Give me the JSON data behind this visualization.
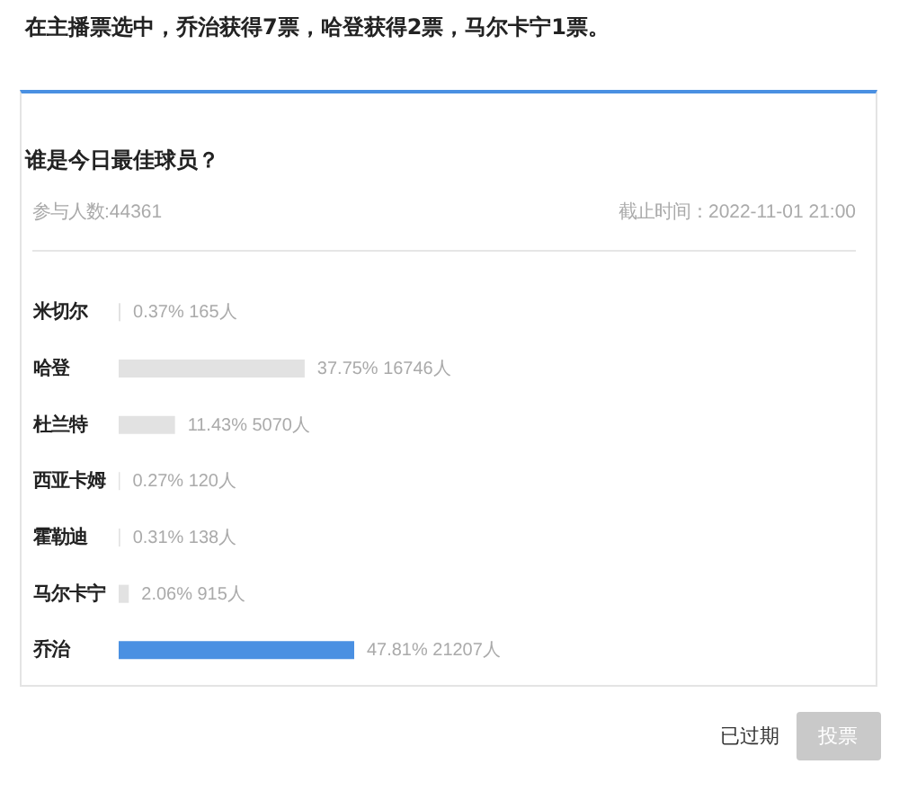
{
  "chart_data": {
    "type": "bar",
    "orientation": "horizontal",
    "title": "在主播票选中，乔治获得7票，哈登获得2票，马尔卡宁1票。",
    "subtitle": "谁是今日最佳球员？",
    "categories": [
      "米切尔",
      "哈登",
      "杜兰特",
      "西亚卡姆",
      "霍勒迪",
      "马尔卡宁",
      "乔治"
    ],
    "values": [
      0.37,
      37.75,
      11.43,
      0.27,
      0.31,
      2.06,
      47.81
    ],
    "colors": [
      "#e2e2e2",
      "#e2e2e2",
      "#e2e2e2",
      "#e2e2e2",
      "#e2e2e2",
      "#e2e2e2",
      "#4a90e2"
    ],
    "value_labels": [
      "0.37% 165人",
      "37.75% 16746人",
      "11.43% 5070人",
      "0.27% 120人",
      "0.31% 138人",
      "2.06% 915人",
      "47.81% 21207人"
    ],
    "annotations": [
      "参与人数:44361",
      "截止时间：2022-11-01 21:00",
      "已过期",
      "投票"
    ],
    "tick_labels": "y"
  }
}
